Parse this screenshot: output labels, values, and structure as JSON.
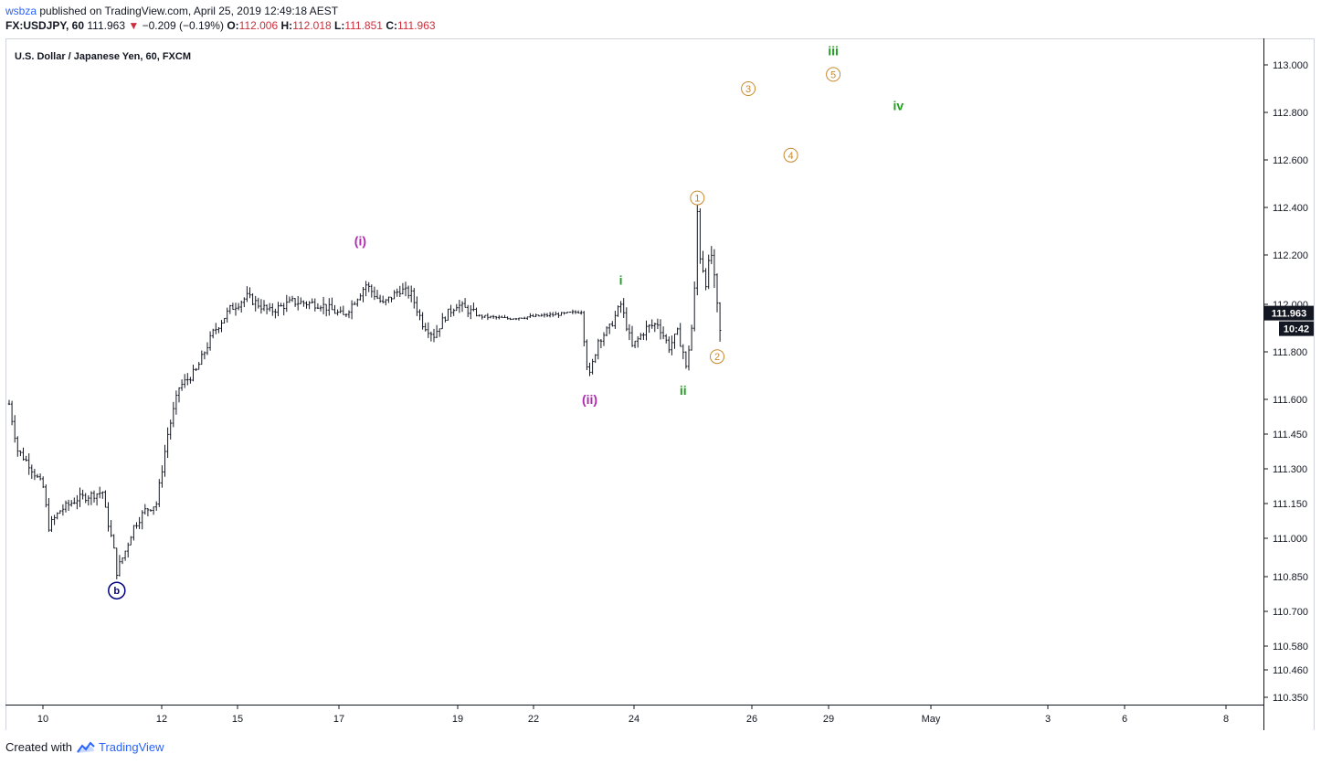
{
  "header": {
    "author": "wsbza",
    "published": "published on TradingView.com, April 25, 2019 12:49:18 AEST",
    "symbol": "FX:USDJPY, 60",
    "price": "111.963",
    "change": "−0.209 (−0.19%)",
    "o_label": "O:",
    "o_value": "112.006",
    "h_label": "H:",
    "h_value": "112.018",
    "l_label": "L:",
    "l_value": "111.851",
    "c_label": "C:",
    "c_value": "111.963"
  },
  "colors": {
    "candle": "#131722",
    "magenta": "#b02ab0",
    "green": "#22a022",
    "orange": "#c8892e",
    "navy": "#000080",
    "brand": "#2962ff",
    "price_tag_bg": "#131722"
  },
  "footer": {
    "created": "Created with",
    "brand": "TradingView"
  },
  "chart_data": {
    "type": "ohlc",
    "title": "U.S. Dollar / Japanese Yen, 60, FXCM",
    "y_range": [
      110.3,
      113.1
    ],
    "y_ticks": [
      "113.000",
      "112.800",
      "112.600",
      "112.400",
      "112.200",
      "112.000",
      "111.800",
      "111.600",
      "111.450",
      "111.300",
      "111.150",
      "111.000",
      "110.850",
      "110.700",
      "110.580",
      "110.460",
      "110.350"
    ],
    "x_ticks": [
      "10",
      "12",
      "15",
      "17",
      "19",
      "22",
      "24",
      "26",
      "29",
      "May",
      "3",
      "6",
      "8"
    ],
    "last_price": "111.963",
    "countdown": "10:42",
    "waypoints": [
      [
        0,
        111.58
      ],
      [
        3,
        111.38
      ],
      [
        7,
        111.32
      ],
      [
        12,
        111.22
      ],
      [
        14,
        111.05
      ],
      [
        18,
        111.12
      ],
      [
        24,
        111.17
      ],
      [
        33,
        111.2
      ],
      [
        34,
        111.12
      ],
      [
        37,
        110.95
      ],
      [
        38,
        110.87
      ],
      [
        41,
        110.95
      ],
      [
        44,
        111.05
      ],
      [
        48,
        111.12
      ],
      [
        52,
        111.15
      ],
      [
        56,
        111.45
      ],
      [
        60,
        111.65
      ],
      [
        66,
        111.72
      ],
      [
        72,
        111.88
      ],
      [
        78,
        111.98
      ],
      [
        84,
        112.03
      ],
      [
        92,
        111.97
      ],
      [
        100,
        112.01
      ],
      [
        110,
        112.0
      ],
      [
        118,
        111.95
      ],
      [
        126,
        112.08
      ],
      [
        132,
        112.0
      ],
      [
        138,
        112.06
      ],
      [
        142,
        112.04
      ],
      [
        146,
        111.92
      ],
      [
        150,
        111.87
      ],
      [
        154,
        111.95
      ],
      [
        158,
        112.0
      ],
      [
        166,
        111.95
      ],
      [
        176,
        111.94
      ],
      [
        186,
        111.95
      ],
      [
        196,
        111.96
      ],
      [
        202,
        111.97
      ],
      [
        204,
        111.75
      ],
      [
        205,
        111.7
      ],
      [
        208,
        111.85
      ],
      [
        212,
        111.9
      ],
      [
        216,
        112.0
      ],
      [
        220,
        111.82
      ],
      [
        225,
        111.9
      ],
      [
        229,
        111.92
      ],
      [
        233,
        111.82
      ],
      [
        236,
        111.88
      ],
      [
        238,
        111.8
      ],
      [
        239,
        111.73
      ],
      [
        241,
        111.9
      ],
      [
        242,
        112.05
      ],
      [
        243,
        112.38
      ],
      [
        244,
        112.2
      ],
      [
        246,
        112.1
      ],
      [
        248,
        112.2
      ],
      [
        250,
        111.98
      ],
      [
        251,
        111.88
      ]
    ],
    "waves": [
      {
        "label": "(i)",
        "color": "magenta",
        "x": 124,
        "y": 112.24,
        "style": "text"
      },
      {
        "label": "(ii)",
        "color": "magenta",
        "x": 205,
        "y": 111.58,
        "style": "text"
      },
      {
        "label": "i",
        "color": "green",
        "x": 216,
        "y": 112.08,
        "style": "text"
      },
      {
        "label": "ii",
        "color": "green",
        "x": 238,
        "y": 111.62,
        "style": "text"
      },
      {
        "label": "iii",
        "color": "green",
        "x": 291,
        "y": 113.04,
        "style": "text"
      },
      {
        "label": "iv",
        "color": "green",
        "x": 314,
        "y": 112.81,
        "style": "text"
      },
      {
        "label": "1",
        "color": "orange",
        "x": 243,
        "y": 112.44,
        "style": "circle"
      },
      {
        "label": "2",
        "color": "orange",
        "x": 250,
        "y": 111.78,
        "style": "circle"
      },
      {
        "label": "3",
        "color": "orange",
        "x": 261,
        "y": 112.9,
        "style": "circle"
      },
      {
        "label": "4",
        "color": "orange",
        "x": 276,
        "y": 112.62,
        "style": "circle"
      },
      {
        "label": "5",
        "color": "orange",
        "x": 291,
        "y": 112.96,
        "style": "circle"
      },
      {
        "label": "b",
        "color": "navy",
        "x": 38,
        "y": 110.79,
        "style": "circle-solid"
      }
    ]
  }
}
